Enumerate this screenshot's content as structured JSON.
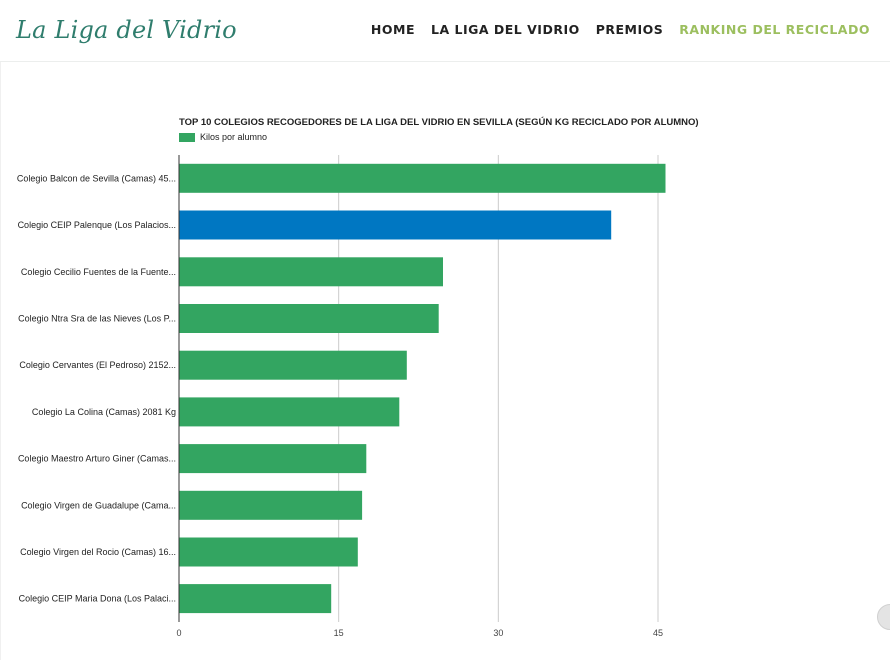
{
  "header": {
    "logo": "La Liga del Vidrio",
    "nav": [
      {
        "label": "HOME",
        "active": false
      },
      {
        "label": "LA LIGA DEL VIDRIO",
        "active": false
      },
      {
        "label": "PREMIOS",
        "active": false
      },
      {
        "label": "RANKING DEL RECICLADO",
        "active": true
      }
    ]
  },
  "colors": {
    "bar": "#33a561",
    "highlight": "#0077c2",
    "accent": "#9cbf5f",
    "logo": "#2f7d6d"
  },
  "chart_data": {
    "type": "bar",
    "orientation": "horizontal",
    "title": "TOP 10 COLEGIOS RECOGEDORES DE LA LIGA DEL VIDRIO EN SEVILLA (SEGÚN KG RECICLADO POR ALUMNO)",
    "legend": "Kilos por alumno",
    "categories": [
      "Colegio Balcon de Sevilla (Camas) 45...",
      "Colegio CEIP Palenque (Los Palacios...",
      "Colegio Cecilio Fuentes de la Fuente...",
      "Colegio Ntra Sra de las Nieves (Los P...",
      "Colegio Cervantes (El Pedroso) 2152...",
      "Colegio La Colina (Camas) 2081 Kg",
      "Colegio Maestro Arturo Giner (Camas...",
      "Colegio Virgen de Guadalupe (Cama...",
      "Colegio Virgen del Rocio (Camas) 16...",
      "Colegio CEIP Maria Dona (Los Palaci..."
    ],
    "values": [
      45.7,
      40.6,
      24.8,
      24.4,
      21.4,
      20.7,
      17.6,
      17.2,
      16.8,
      14.3
    ],
    "highlight_index": 1,
    "xlim": [
      0,
      45
    ],
    "xticks": [
      0,
      15,
      30,
      45
    ],
    "grid": true
  }
}
